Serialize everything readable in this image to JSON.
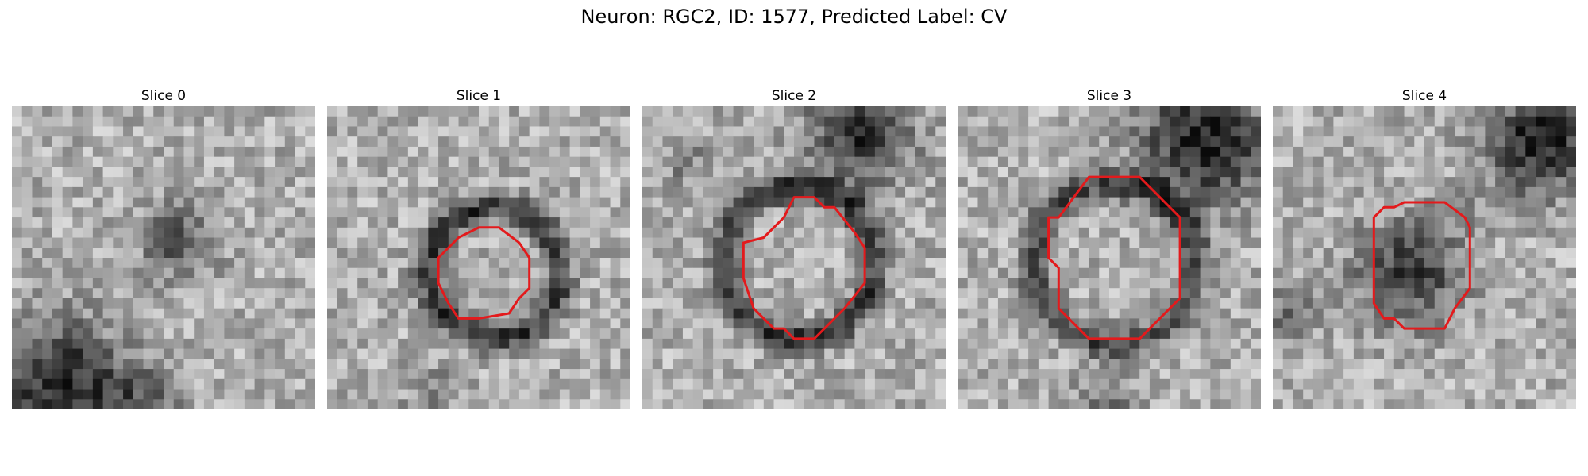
{
  "title": "Neuron: RGC2, ID: 1577, Predicted Label: CV",
  "contour_color": "#e31a1c",
  "panels": [
    {
      "label": "Slice 0",
      "has_contour": false
    },
    {
      "label": "Slice 1",
      "has_contour": true
    },
    {
      "label": "Slice 2",
      "has_contour": true
    },
    {
      "label": "Slice 3",
      "has_contour": true
    },
    {
      "label": "Slice 4",
      "has_contour": true
    }
  ]
}
